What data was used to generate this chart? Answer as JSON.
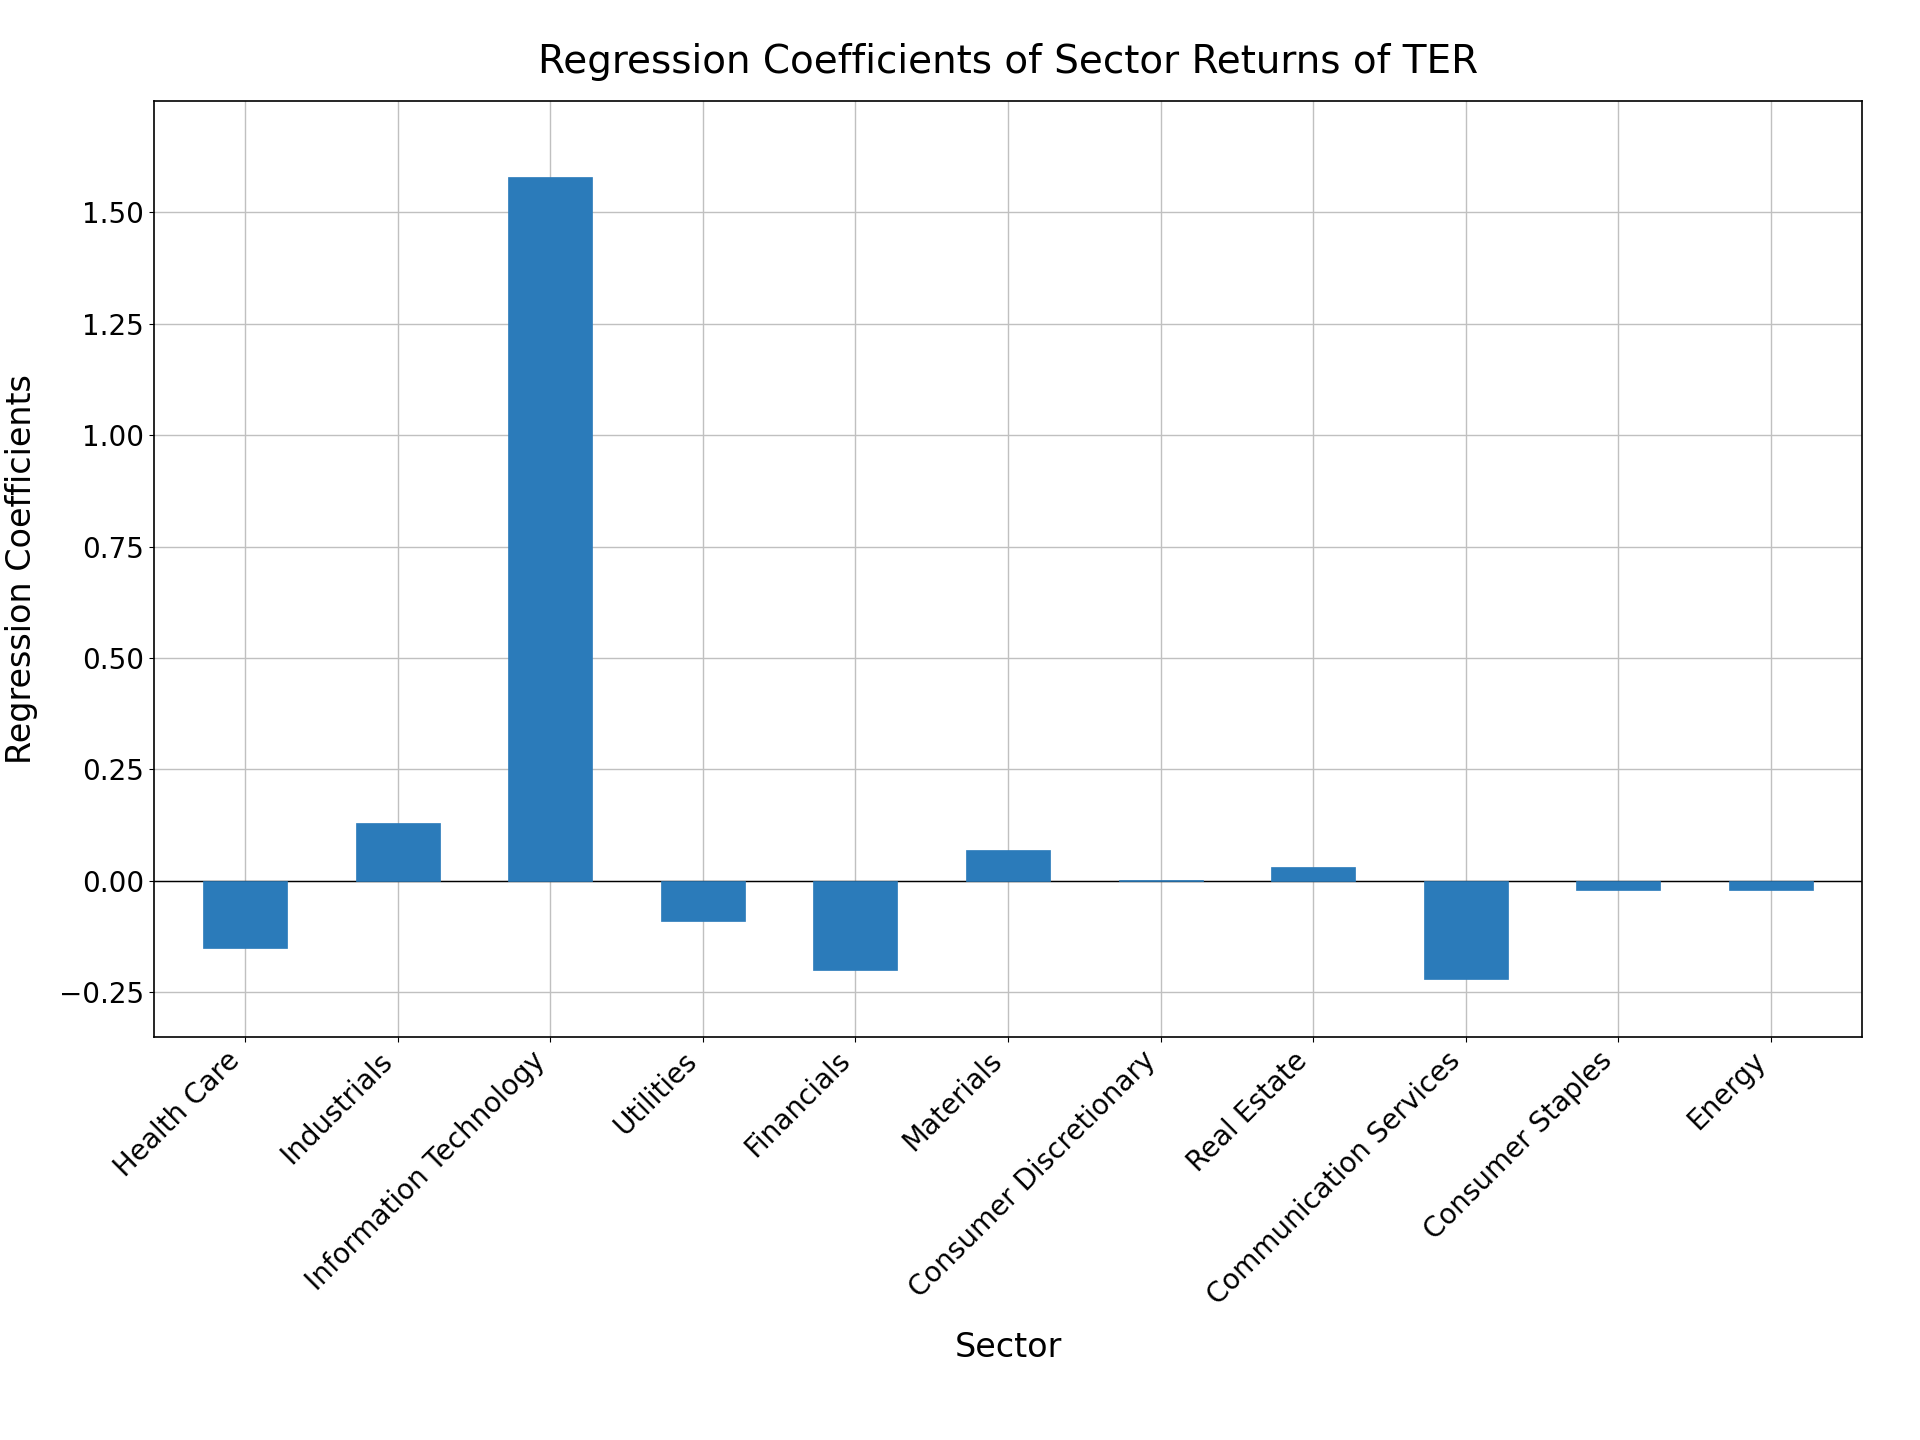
{
  "categories": [
    "Health Care",
    "Industrials",
    "Information Technology",
    "Utilities",
    "Financials",
    "Materials",
    "Consumer Discretionary",
    "Real Estate",
    "Communication Services",
    "Consumer Staples",
    "Energy"
  ],
  "values": [
    -0.15,
    0.13,
    1.58,
    -0.09,
    -0.2,
    0.07,
    0.001,
    0.03,
    -0.22,
    -0.02,
    -0.02
  ],
  "bar_color": "#2b7bba",
  "title": "Regression Coefficients of Sector Returns of TER",
  "xlabel": "Sector",
  "ylabel": "Regression Coefficients",
  "ylim": [
    -0.35,
    1.75
  ],
  "yticks": [
    -0.25,
    0.0,
    0.25,
    0.5,
    0.75,
    1.0,
    1.25,
    1.5
  ],
  "title_fontsize": 28,
  "label_fontsize": 24,
  "tick_fontsize": 20,
  "bar_width": 0.55,
  "grid_color": "#c0c0c0",
  "grid_linewidth": 1.0,
  "fig_facecolor": "#ffffff",
  "ax_facecolor": "#ffffff",
  "figsize": [
    19.2,
    14.4
  ],
  "dpi": 100
}
